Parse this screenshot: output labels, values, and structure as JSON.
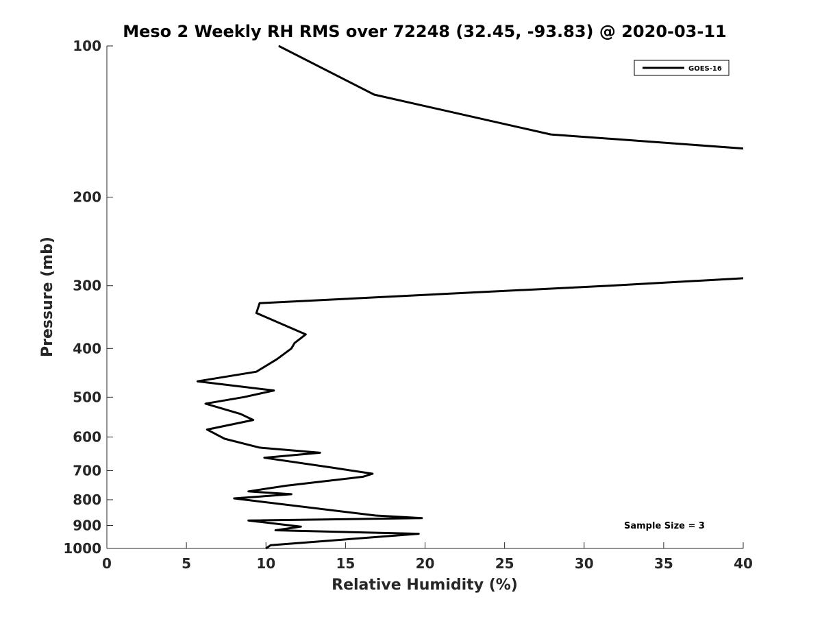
{
  "chart_data": {
    "type": "line",
    "title": "Meso 2 Weekly RH RMS over 72248 (32.45, -93.83) @ 2020-03-11",
    "xlabel": "Relative Humidity (%)",
    "ylabel": "Pressure (mb)",
    "xlim": [
      0,
      40
    ],
    "ylim": [
      100,
      1000
    ],
    "y_scale": "log",
    "y_reversed": true,
    "grid": false,
    "legend_position": "top-right",
    "x_ticks": [
      "0",
      "5",
      "10",
      "15",
      "20",
      "25",
      "30",
      "35",
      "40"
    ],
    "y_ticks": [
      "100",
      "200",
      "300",
      "400",
      "500",
      "600",
      "700",
      "800",
      "900",
      "1000"
    ],
    "series": [
      {
        "name": "GOES-16",
        "color": "#000000",
        "segments": [
          [
            [
              10.8,
              100
            ],
            [
              16.8,
              125
            ],
            [
              27.9,
              150
            ],
            [
              40.0,
              160
            ]
          ],
          [
            [
              40.0,
              290
            ],
            [
              31.6,
              300
            ],
            [
              9.6,
              325
            ],
            [
              9.4,
              340
            ],
            [
              12.5,
              375
            ],
            [
              11.8,
              390
            ],
            [
              11.6,
              400
            ],
            [
              10.7,
              420
            ],
            [
              9.4,
              445
            ],
            [
              5.7,
              465
            ],
            [
              10.5,
              485
            ],
            [
              8.6,
              500
            ],
            [
              6.2,
              515
            ],
            [
              8.4,
              540
            ],
            [
              9.2,
              555
            ],
            [
              6.3,
              580
            ],
            [
              7.4,
              605
            ],
            [
              9.6,
              630
            ],
            [
              13.4,
              645
            ],
            [
              9.9,
              660
            ],
            [
              14.1,
              690
            ],
            [
              16.7,
              710
            ],
            [
              16.1,
              720
            ],
            [
              11.3,
              750
            ],
            [
              8.9,
              770
            ],
            [
              11.6,
              780
            ],
            [
              8.0,
              795
            ],
            [
              16.9,
              860
            ],
            [
              19.8,
              870
            ],
            [
              8.9,
              880
            ],
            [
              12.2,
              905
            ],
            [
              10.6,
              920
            ],
            [
              19.6,
              935
            ],
            [
              10.3,
              985
            ],
            [
              10.0,
              1000
            ]
          ]
        ]
      }
    ],
    "annotations": [
      "Sample Size = 3"
    ]
  }
}
